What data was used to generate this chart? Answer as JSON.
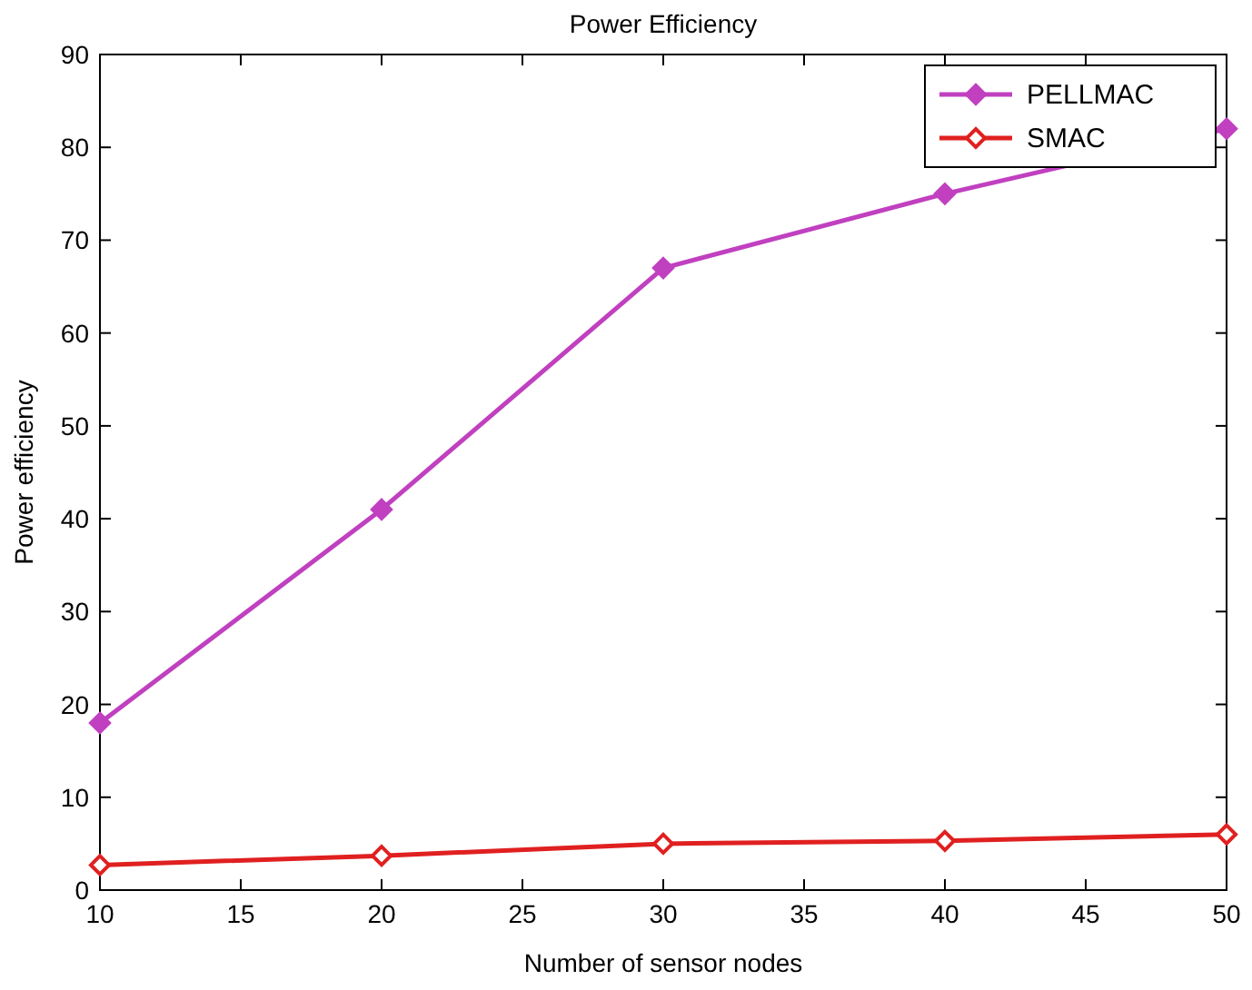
{
  "chart_data": {
    "type": "line",
    "title": "Power Efficiency",
    "xlabel": "Number of sensor nodes",
    "ylabel": "Power efficiency",
    "x": [
      10,
      20,
      30,
      40,
      50
    ],
    "series": [
      {
        "name": "PELLMAC",
        "color": "#c040c0",
        "values": [
          18,
          41,
          67,
          75,
          82
        ]
      },
      {
        "name": "SMAC",
        "color": "#e02020",
        "values": [
          2.7,
          3.7,
          5,
          5.3,
          6
        ]
      }
    ],
    "xlim": [
      10,
      50
    ],
    "xticks": [
      10,
      15,
      20,
      25,
      30,
      35,
      40,
      45,
      50
    ],
    "ylim": [
      0,
      90
    ],
    "yticks": [
      0,
      10,
      20,
      30,
      40,
      50,
      60,
      70,
      80,
      90
    ],
    "legend": "top right",
    "marker": "diamond",
    "line_style": "solid",
    "grid": false
  }
}
